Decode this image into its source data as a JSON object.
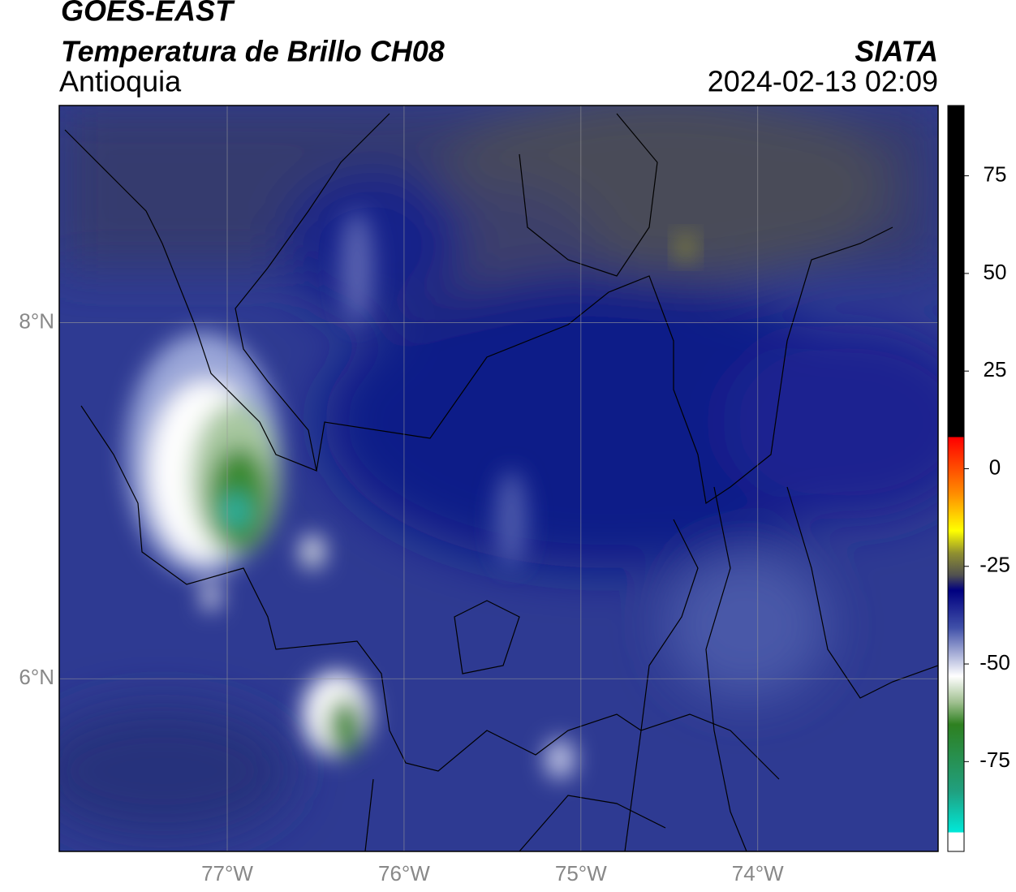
{
  "header": {
    "satellite": "GOES-EAST",
    "product": "Temperatura de Brillo CH08",
    "region": "Antioquia",
    "agency": "SIATA",
    "datetime": "2024-02-13 02:09"
  },
  "map": {
    "xlim": [
      -77.95,
      -72.98
    ],
    "ylim": [
      5.03,
      9.22
    ],
    "xticks": [
      {
        "value": -77,
        "label": "77°W"
      },
      {
        "value": -76,
        "label": "76°W"
      },
      {
        "value": -75,
        "label": "75°W"
      },
      {
        "value": -74,
        "label": "74°W"
      }
    ],
    "yticks": [
      {
        "value": 6,
        "label": "6°N"
      },
      {
        "value": 8,
        "label": "8°N"
      }
    ],
    "grid": true
  },
  "colorbar": {
    "lim": [
      -98,
      93
    ],
    "ticks": [
      75,
      50,
      25,
      0,
      -25,
      -50,
      -75
    ]
  }
}
